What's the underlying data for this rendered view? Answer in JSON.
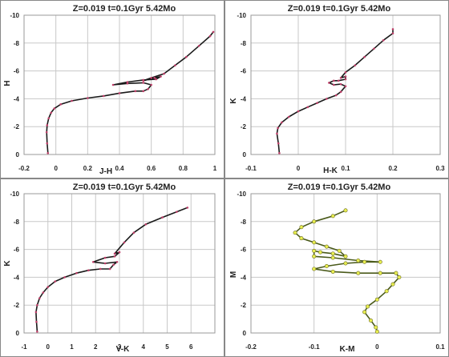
{
  "chart_data": [
    {
      "type": "line",
      "title": "Z=0.019  t=0.1Gyr  5.42Mo",
      "xlabel": "J-H",
      "ylabel": "H",
      "xlim": [
        -0.2,
        1.0
      ],
      "ylim": [
        0,
        -10
      ],
      "x_ticks": [
        -0.2,
        0,
        0.2,
        0.4,
        0.6,
        0.8,
        1.0
      ],
      "x_tick_labels": [
        "-0.2",
        "0",
        "0.2",
        "0.4",
        "0.6",
        "0.8",
        "1"
      ],
      "y_ticks": [
        0,
        -2,
        -4,
        -6,
        -8,
        -10
      ],
      "y_tick_labels": [
        "0",
        "-2",
        "-4",
        "-6",
        "-8",
        "-10"
      ],
      "grid": true,
      "line_color": "#1a1a1a",
      "marker_color": "#c0406a",
      "series": [
        {
          "x": [
            -0.05,
            -0.055,
            -0.058,
            -0.055,
            -0.045,
            -0.03,
            -0.01,
            0.03,
            0.1,
            0.2,
            0.3,
            0.4,
            0.5,
            0.55,
            0.58,
            0.6,
            0.55,
            0.45,
            0.36,
            0.45,
            0.55,
            0.63,
            0.66,
            0.62,
            0.55,
            0.6,
            0.68,
            0.75,
            0.82,
            0.9,
            0.97,
            0.99
          ],
          "y": [
            -0.1,
            -0.8,
            -1.6,
            -2.1,
            -2.6,
            -3.0,
            -3.3,
            -3.6,
            -3.85,
            -4.05,
            -4.2,
            -4.4,
            -4.55,
            -4.55,
            -4.7,
            -5.0,
            -5.15,
            -5.1,
            -5.0,
            -5.2,
            -5.35,
            -5.4,
            -5.6,
            -5.5,
            -5.3,
            -5.5,
            -5.8,
            -6.4,
            -7.0,
            -7.8,
            -8.5,
            -8.8
          ]
        }
      ]
    },
    {
      "type": "line",
      "title": "Z=0.019  t=0.1Gyr  5.42Mo",
      "xlabel": "H-K",
      "ylabel": "K",
      "xlim": [
        -0.1,
        0.3
      ],
      "ylim": [
        0,
        -10
      ],
      "x_ticks": [
        -0.1,
        0,
        0.1,
        0.2,
        0.3
      ],
      "x_tick_labels": [
        "-0.1",
        "0",
        "0.1",
        "0.2",
        "0.3"
      ],
      "y_ticks": [
        0,
        -2,
        -4,
        -6,
        -8,
        -10
      ],
      "y_tick_labels": [
        "0",
        "-2",
        "-4",
        "-6",
        "-8",
        "-10"
      ],
      "grid": true,
      "line_color": "#1a1a1a",
      "marker_color": "#c0406a",
      "series": [
        {
          "x": [
            -0.04,
            -0.042,
            -0.045,
            -0.043,
            -0.035,
            -0.02,
            0.0,
            0.02,
            0.04,
            0.06,
            0.08,
            0.09,
            0.1,
            0.09,
            0.075,
            0.065,
            0.075,
            0.085,
            0.1,
            0.1,
            0.09,
            0.1,
            0.12,
            0.14,
            0.16,
            0.18,
            0.2,
            0.2
          ],
          "y": [
            -0.1,
            -0.8,
            -1.5,
            -1.9,
            -2.3,
            -2.7,
            -3.1,
            -3.4,
            -3.7,
            -4.0,
            -4.25,
            -4.5,
            -4.9,
            -5.05,
            -5.0,
            -5.15,
            -5.3,
            -5.3,
            -5.4,
            -5.6,
            -5.5,
            -5.9,
            -6.4,
            -7.0,
            -7.6,
            -8.2,
            -8.7,
            -9.0
          ]
        }
      ]
    },
    {
      "type": "line",
      "title": "Z=0.019  t=0.1Gyr  5.42Mo",
      "xlabel": "V-K",
      "ylabel": "K",
      "xlim": [
        -1,
        7
      ],
      "ylim": [
        0,
        -10
      ],
      "x_ticks": [
        -1,
        0,
        1,
        2,
        3,
        4,
        5,
        6,
        7
      ],
      "x_tick_labels": [
        "-1",
        "0",
        "1",
        "2",
        "3",
        "4",
        "5",
        "6",
        ""
      ],
      "y_ticks": [
        0,
        -2,
        -4,
        -6,
        -8,
        -10
      ],
      "y_tick_labels": [
        "0",
        "-2",
        "-4",
        "-6",
        "-8",
        "-10"
      ],
      "grid": true,
      "line_color": "#1a1a1a",
      "marker_color": "#c0406a",
      "series": [
        {
          "x": [
            -0.45,
            -0.48,
            -0.5,
            -0.45,
            -0.35,
            -0.2,
            0.0,
            0.3,
            0.7,
            1.2,
            1.7,
            2.2,
            2.6,
            2.75,
            2.9,
            2.4,
            1.9,
            2.4,
            2.8,
            3.0,
            2.8,
            3.2,
            3.6,
            4.1,
            4.8,
            5.4,
            5.85
          ],
          "y": [
            -0.1,
            -0.8,
            -1.5,
            -2.0,
            -2.5,
            -2.9,
            -3.3,
            -3.7,
            -4.0,
            -4.3,
            -4.5,
            -4.6,
            -4.6,
            -4.9,
            -5.1,
            -5.0,
            -5.1,
            -5.4,
            -5.5,
            -5.8,
            -5.7,
            -6.5,
            -7.2,
            -7.8,
            -8.3,
            -8.7,
            -9.0
          ]
        }
      ]
    },
    {
      "type": "line",
      "title": "Z=0.019  t=0.1Gyr  5.42Mo",
      "xlabel": "K-M",
      "ylabel": "M",
      "xlim": [
        -0.2,
        0.1
      ],
      "ylim": [
        0,
        -10
      ],
      "x_ticks": [
        -0.2,
        -0.1,
        0,
        0.1
      ],
      "x_tick_labels": [
        "-0.2",
        "-0.1",
        "0",
        "0.1"
      ],
      "y_ticks": [
        0,
        -2,
        -4,
        -6,
        -8,
        -10
      ],
      "y_tick_labels": [
        "0",
        "-2",
        "-4",
        "-6",
        "-8",
        "-10"
      ],
      "grid": true,
      "line_color": "#4a5a1a",
      "marker_color": "#e8ee50",
      "series": [
        {
          "x": [
            0.0,
            -0.002,
            -0.01,
            -0.02,
            -0.015,
            0.0,
            0.015,
            0.025,
            0.035,
            0.03,
            0.005,
            -0.03,
            -0.07,
            -0.1,
            -0.08,
            -0.05,
            -0.02,
            0.005,
            -0.03,
            -0.07,
            -0.1,
            -0.1,
            -0.09,
            -0.07,
            -0.05,
            -0.06,
            -0.08,
            -0.1,
            -0.12,
            -0.13,
            -0.12,
            -0.1,
            -0.07,
            -0.05
          ],
          "y": [
            -0.1,
            -0.4,
            -0.9,
            -1.5,
            -1.9,
            -2.4,
            -3.0,
            -3.5,
            -4.0,
            -4.3,
            -4.3,
            -4.3,
            -4.4,
            -4.6,
            -4.8,
            -5.0,
            -5.1,
            -5.1,
            -5.2,
            -5.4,
            -5.5,
            -5.9,
            -5.8,
            -5.7,
            -5.5,
            -5.9,
            -6.2,
            -6.5,
            -6.8,
            -7.2,
            -7.6,
            -8.0,
            -8.4,
            -8.8
          ]
        }
      ]
    }
  ]
}
